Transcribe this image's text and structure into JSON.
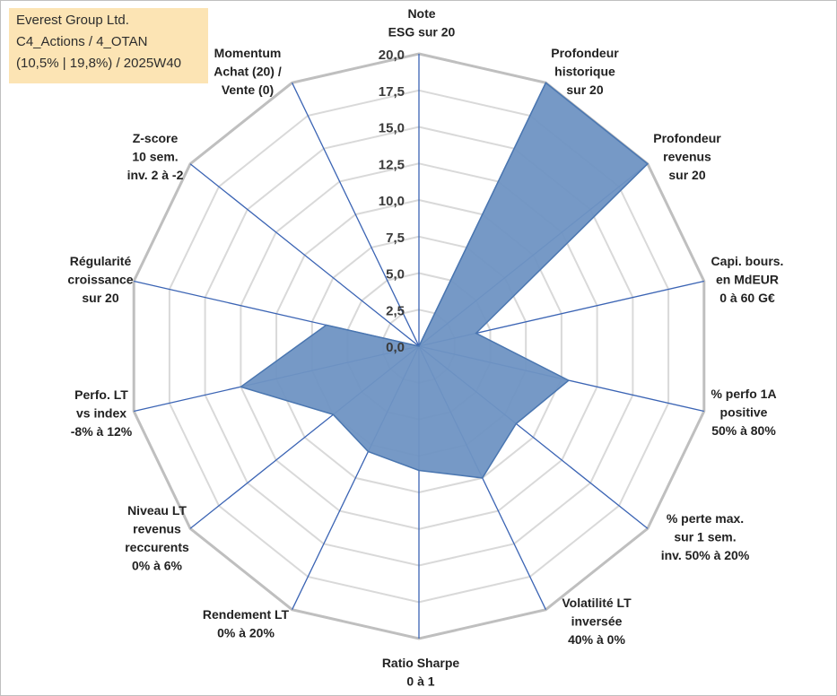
{
  "title_box": {
    "line1": "Everest Group Ltd.",
    "line2": "C4_Actions / 4_OTAN",
    "line3": "(10,5% | 19,8%) / 2025W40"
  },
  "colors": {
    "fill": "#6f94c3",
    "stroke": "#4a76b0",
    "spoke": "#3b64b4",
    "grid_outer": "#bfbfbf",
    "grid_inner": "#d9d9d9",
    "tick_text": "#3a3a3a",
    "label_text": "#222222",
    "title_bg": "#fce4b4"
  },
  "chart_data": {
    "type": "radar",
    "rmin": 0,
    "rmax": 20,
    "step": 2.5,
    "tick_labels": [
      "0,0",
      "2,5",
      "5,0",
      "7,5",
      "10,0",
      "12,5",
      "15,0",
      "17,5",
      "20,0"
    ],
    "axes": [
      [
        "Note",
        "ESG sur 20"
      ],
      [
        "Profondeur",
        "historique",
        "sur 20"
      ],
      [
        "Profondeur",
        "revenus",
        "sur 20"
      ],
      [
        "Capi. bours.",
        "en MdEUR",
        "0 à 60 G€"
      ],
      [
        "% perfo 1A",
        "positive",
        "50% à 80%"
      ],
      [
        "% perte max.",
        "sur 1 sem.",
        "inv. 50% à 20%"
      ],
      [
        "Volatilité LT",
        "inversée",
        "40% à 0%"
      ],
      [
        "Ratio Sharpe",
        "0 à 1"
      ],
      [
        "Rendement LT",
        "0% à 20%"
      ],
      [
        "Niveau LT",
        "revenus",
        "reccurents",
        "0% à 6%"
      ],
      [
        "Perfo. LT",
        "vs index",
        "-8% à 12%"
      ],
      [
        "Régularité",
        "croissance",
        "sur 20"
      ],
      [
        "Z-score",
        "10 sem.",
        "inv. 2 à -2"
      ],
      [
        "Momentum",
        "Achat (20) /",
        "Vente (0)"
      ]
    ],
    "series": [
      {
        "name": "Everest Group Ltd.",
        "values": [
          0,
          20,
          20,
          4,
          10.5,
          8.5,
          10,
          8.5,
          8,
          7.5,
          12.5,
          6.5,
          0,
          0
        ]
      }
    ]
  }
}
